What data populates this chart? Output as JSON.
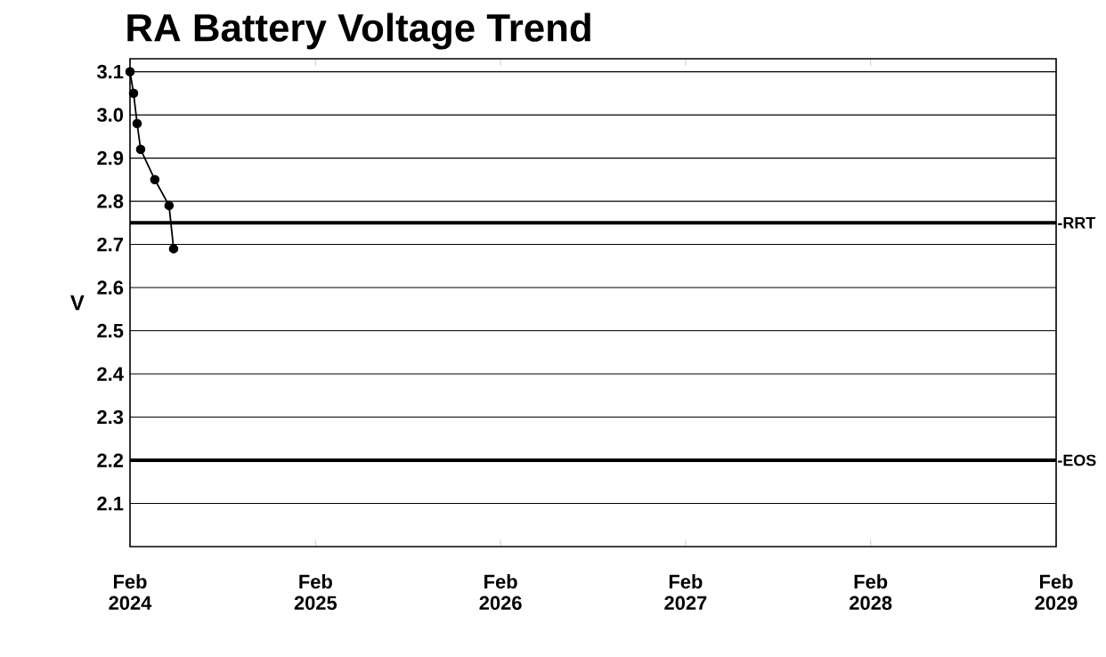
{
  "chart_data": {
    "type": "line",
    "title": "RA Battery Voltage Trend",
    "ylabel": "V",
    "x": [
      "2024-02-01",
      "2024-02-08",
      "2024-02-15",
      "2024-02-22",
      "2024-03-21",
      "2024-04-18",
      "2024-04-27"
    ],
    "values": [
      3.1,
      3.05,
      2.98,
      2.92,
      2.85,
      2.79,
      2.69
    ],
    "color": "#000000",
    "marker": "circle",
    "line_style": "solid",
    "xlim": [
      "2024-02-01",
      "2029-02-01"
    ],
    "xticks": [
      {
        "value": "2024-02-01",
        "label": "Feb 2024"
      },
      {
        "value": "2025-02-01",
        "label": "Feb 2025"
      },
      {
        "value": "2026-02-01",
        "label": "Feb 2026"
      },
      {
        "value": "2027-02-01",
        "label": "Feb 2027"
      },
      {
        "value": "2028-02-01",
        "label": "Feb 2028"
      },
      {
        "value": "2029-02-01",
        "label": "Feb 2029"
      }
    ],
    "ylim": [
      2.0,
      3.13
    ],
    "yticks": [
      {
        "value": 2.1,
        "label": "2.1"
      },
      {
        "value": 2.2,
        "label": "2.2"
      },
      {
        "value": 2.3,
        "label": "2.3"
      },
      {
        "value": 2.4,
        "label": "2.4"
      },
      {
        "value": 2.5,
        "label": "2.5"
      },
      {
        "value": 2.6,
        "label": "2.6"
      },
      {
        "value": 2.7,
        "label": "2.7"
      },
      {
        "value": 2.8,
        "label": "2.8"
      },
      {
        "value": 2.9,
        "label": "2.9"
      },
      {
        "value": 3.0,
        "label": "3.0"
      },
      {
        "value": 3.1,
        "label": "3.1"
      }
    ],
    "grid": "y",
    "ref_lines": [
      {
        "axis": "y",
        "value": 2.75,
        "label": "-RRT",
        "color": "#000000"
      },
      {
        "axis": "y",
        "value": 2.2,
        "label": "-EOS",
        "color": "#000000"
      }
    ]
  }
}
